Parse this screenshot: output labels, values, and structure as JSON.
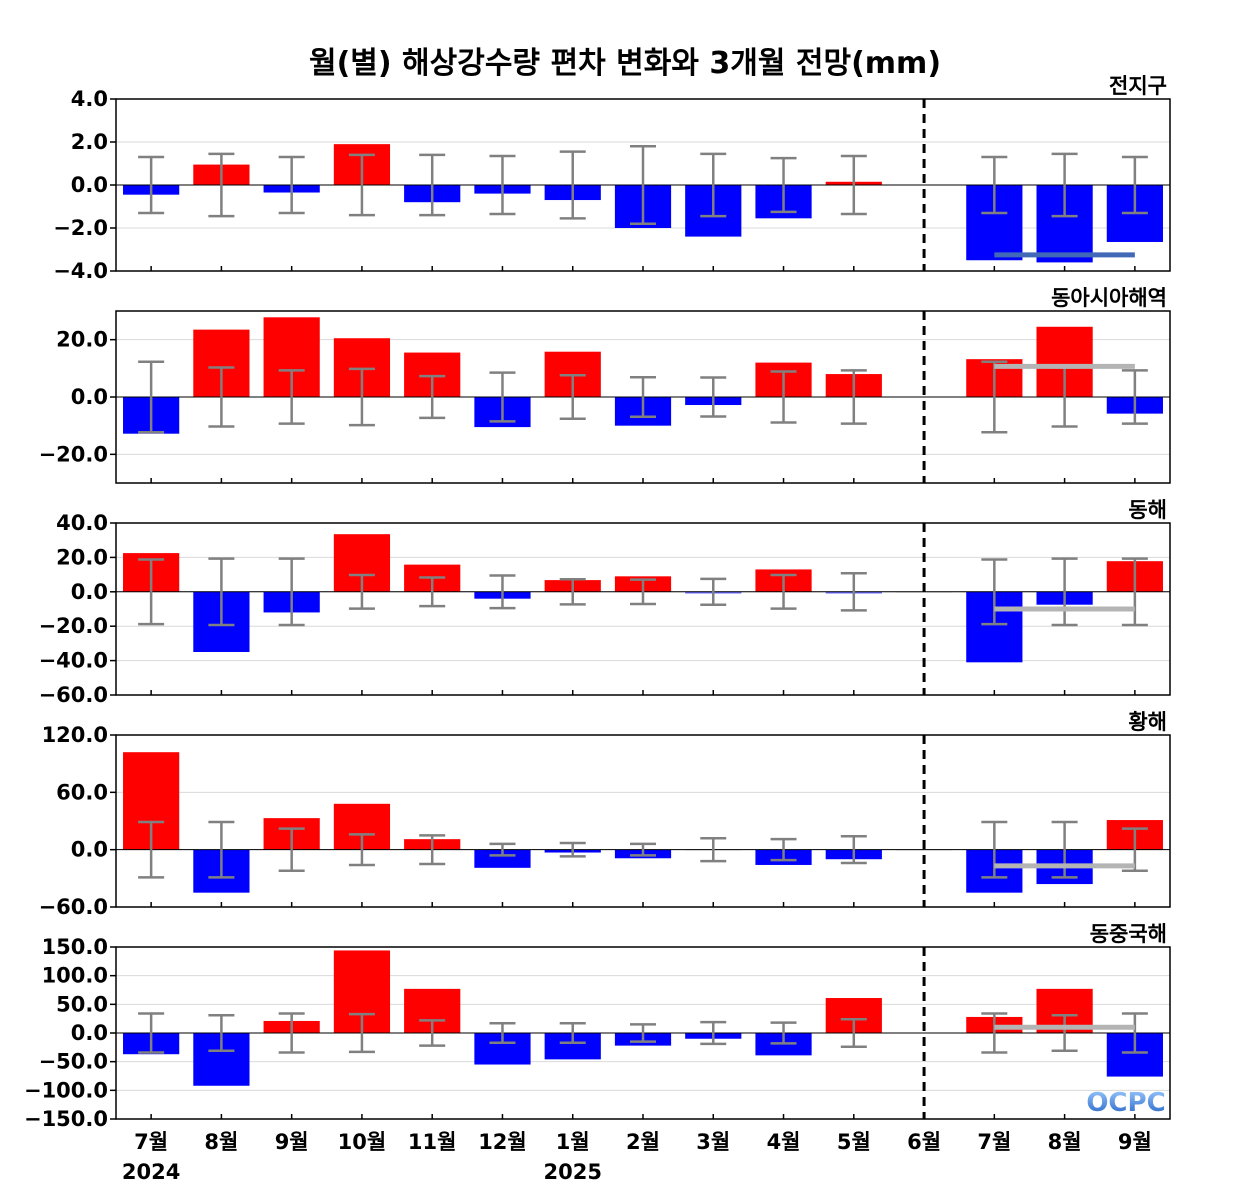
{
  "title": "월(별) 해상강수량 편차 변화와 3개월 전망(mm)",
  "logo_text": "OCPC",
  "colors": {
    "positive": "#ff0000",
    "negative": "#0000ff",
    "error_bar": "#808080",
    "forecast_line_main": "#4169b8",
    "forecast_line": "#b4b4b4",
    "divider": "#000000"
  },
  "chart_data": {
    "type": "bar",
    "categories": [
      "7월",
      "8월",
      "9월",
      "10월",
      "11월",
      "12월",
      "1월",
      "2월",
      "3월",
      "4월",
      "5월",
      "6월",
      "7월",
      "8월",
      "9월"
    ],
    "year_labels": [
      {
        "label": "2024",
        "category_index": 0
      },
      {
        "label": "2025",
        "category_index": 6
      }
    ],
    "divider_after_index": 11,
    "panels": [
      {
        "name": "전지구",
        "ylim": [
          -4,
          4
        ],
        "yticks": [
          -4,
          -2,
          0,
          2,
          4
        ],
        "tick_labels": [
          "−4.0",
          "−2.0",
          "0.0",
          "2.0",
          "4.0"
        ],
        "values": [
          -0.45,
          0.95,
          -0.35,
          1.9,
          -0.8,
          -0.4,
          -0.7,
          -2.0,
          -2.4,
          -1.55,
          0.15,
          0.0,
          -3.5,
          -3.6,
          -2.65
        ],
        "error": [
          1.3,
          1.45,
          1.3,
          1.4,
          1.4,
          1.35,
          1.55,
          1.8,
          1.45,
          1.25,
          1.35,
          null,
          1.3,
          1.45,
          1.3
        ],
        "forecast_line": -3.25,
        "forecast_line_color": "main"
      },
      {
        "name": "동아시아해역",
        "ylim": [
          -30,
          30
        ],
        "yticks": [
          -20,
          0,
          20
        ],
        "tick_labels": [
          "−20.0",
          "0.0",
          "20.0"
        ],
        "values": [
          -12.8,
          23.5,
          27.8,
          20.5,
          15.5,
          -10.5,
          15.8,
          -10.0,
          -2.8,
          12.0,
          8.0,
          0.0,
          13.2,
          24.5,
          -5.8
        ],
        "error": [
          12.3,
          10.3,
          9.3,
          9.8,
          7.3,
          8.5,
          7.6,
          6.9,
          6.8,
          8.9,
          9.3,
          null,
          12.3,
          10.3,
          9.3
        ],
        "forecast_line": 10.7,
        "forecast_line_color": "light"
      },
      {
        "name": "동해",
        "ylim": [
          -60,
          40
        ],
        "yticks": [
          -60,
          -40,
          -20,
          0,
          20,
          40
        ],
        "tick_labels": [
          "−60.0",
          "−40.0",
          "−20.0",
          "0.0",
          "20.0",
          "40.0"
        ],
        "values": [
          22.5,
          -35.0,
          -12.0,
          33.5,
          15.8,
          -4.0,
          6.8,
          9.0,
          -1.0,
          13.0,
          -1.0,
          0.0,
          -41.0,
          -7.5,
          17.8
        ],
        "error": [
          18.8,
          19.3,
          19.3,
          9.8,
          8.3,
          9.5,
          7.3,
          7.1,
          7.5,
          9.8,
          10.8,
          null,
          18.8,
          19.3,
          19.3
        ],
        "forecast_line": -10.0,
        "forecast_line_color": "light"
      },
      {
        "name": "황해",
        "ylim": [
          -60,
          120
        ],
        "yticks": [
          -60,
          0,
          60,
          120
        ],
        "tick_labels": [
          "−60.0",
          "0.0",
          "60.0",
          "120.0"
        ],
        "values": [
          102.0,
          -45.0,
          33.0,
          48.0,
          11.0,
          -19.0,
          -3.0,
          -9.0,
          0.0,
          -16.0,
          -10.0,
          0.0,
          -45.0,
          -36.0,
          31.0
        ],
        "error": [
          29.0,
          29.0,
          22.0,
          16.0,
          15.0,
          6.0,
          7.0,
          6.0,
          12.0,
          11.0,
          14.0,
          null,
          29.0,
          29.0,
          22.0
        ],
        "forecast_line": -17.0,
        "forecast_line_color": "light"
      },
      {
        "name": "동중국해",
        "ylim": [
          -150,
          150
        ],
        "yticks": [
          -150,
          -100,
          -50,
          0,
          50,
          100,
          150
        ],
        "tick_labels": [
          "−150.0",
          "−100.0",
          "−50.0",
          "0.0",
          "50.0",
          "100.0",
          "150.0"
        ],
        "values": [
          -37.0,
          -92.0,
          21.0,
          144.0,
          77.0,
          -55.0,
          -46.0,
          -22.0,
          -10.0,
          -39.0,
          61.0,
          0.0,
          28.0,
          77.0,
          -76.0
        ],
        "error": [
          34.0,
          31.0,
          34.0,
          33.0,
          22.0,
          17.0,
          17.0,
          15.0,
          19.0,
          18.0,
          24.0,
          null,
          34.0,
          31.0,
          34.0
        ],
        "forecast_line": 10.0,
        "forecast_line_color": "light"
      }
    ]
  }
}
